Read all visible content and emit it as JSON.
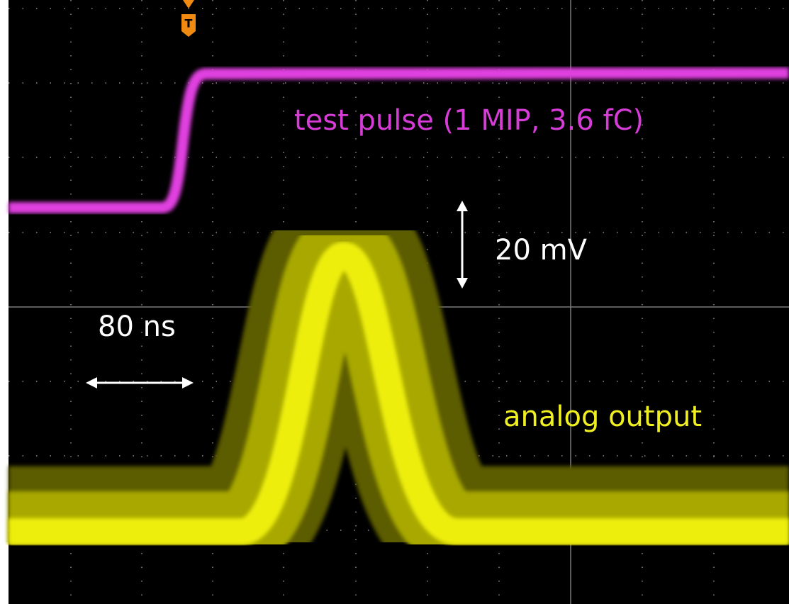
{
  "trigger": {
    "label": "T"
  },
  "annotations": {
    "test_pulse": "test pulse (1 MIP, 3.6 fC)",
    "vertical_scale": "20 mV",
    "horizontal_scale": "80 ns",
    "analog_output": "analog output"
  }
}
